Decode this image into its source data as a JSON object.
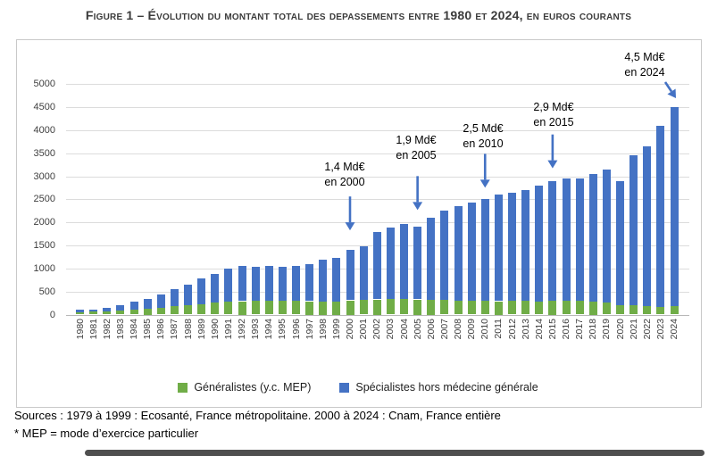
{
  "title": "Figure 1 – Évolution du montant total des depassements entre 1980 et 2024, en euros courants",
  "footer": {
    "sources": "Sources : 1979 à 1999 : Ecosanté, France métropolitaine. 2000 à 2024 : Cnam, France entière",
    "note": "* MEP = mode d’exercice particulier"
  },
  "colors": {
    "generalistes": "#70ad47",
    "specialistes": "#4472c4",
    "arrow": "#4472c4",
    "gridline": "#dcdcdc",
    "title_text": "#3b3b3b"
  },
  "chart_data": {
    "type": "bar",
    "stacked": true,
    "grid": true,
    "legend_position": "bottom",
    "ylim": [
      0,
      5000
    ],
    "y_tick_step": 500,
    "xlabel": "",
    "ylabel": "",
    "categories": [
      "1980",
      "1981",
      "1982",
      "1983",
      "1984",
      "1985",
      "1986",
      "1987",
      "1988",
      "1989",
      "1990",
      "1991",
      "1992",
      "1993",
      "1994",
      "1995",
      "1996",
      "1997",
      "1998",
      "1999",
      "2000",
      "2001",
      "2002",
      "2003",
      "2004",
      "2005",
      "2006",
      "2007",
      "2008",
      "2009",
      "2010",
      "2011",
      "2012",
      "2013",
      "2014",
      "2015",
      "2016",
      "2017",
      "2018",
      "2019",
      "2020",
      "2021",
      "2022",
      "2023",
      "2024"
    ],
    "series": [
      {
        "name": "Généralistes (y.c. MEP)",
        "color": "#70ad47",
        "values": [
          55,
          60,
          70,
          85,
          105,
          125,
          150,
          180,
          205,
          230,
          255,
          275,
          290,
          295,
          295,
          295,
          295,
          290,
          290,
          290,
          310,
          315,
          330,
          340,
          345,
          330,
          320,
          315,
          305,
          305,
          295,
          290,
          295,
          295,
          285,
          300,
          295,
          295,
          280,
          255,
          205,
          195,
          190,
          170,
          180
        ]
      },
      {
        "name": "Spécialistes hors médecine générale",
        "color": "#4472c4",
        "values": [
          55,
          55,
          80,
          120,
          175,
          210,
          280,
          370,
          445,
          560,
          625,
          725,
          770,
          740,
          765,
          745,
          765,
          800,
          910,
          940,
          1090,
          1165,
          1460,
          1550,
          1615,
          1570,
          1780,
          1935,
          2045,
          2125,
          2205,
          2310,
          2355,
          2405,
          2515,
          2600,
          2655,
          2655,
          2770,
          2895,
          2695,
          3255,
          3460,
          3930,
          4320
        ]
      }
    ],
    "totals_annotated": [
      1400,
      1900,
      2500,
      2900,
      4500
    ],
    "annotations": [
      {
        "label": "1,4 Md€",
        "sublabel": "en 2000",
        "year": "2000"
      },
      {
        "label": "1,9 Md€",
        "sublabel": "en 2005",
        "year": "2005"
      },
      {
        "label": "2,5 Md€",
        "sublabel": "en 2010",
        "year": "2010"
      },
      {
        "label": "2,9 Md€",
        "sublabel": "en 2015",
        "year": "2015"
      },
      {
        "label": "4,5 Md€",
        "sublabel": "en 2024",
        "year": "2024"
      }
    ]
  }
}
